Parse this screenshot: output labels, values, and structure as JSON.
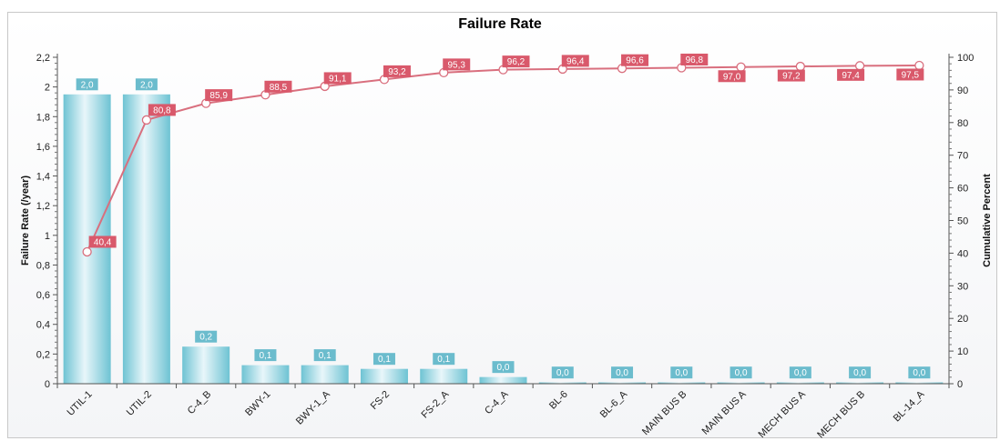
{
  "chart_data": {
    "type": "bar",
    "title": "Failure Rate",
    "categories": [
      "UTIL-1",
      "UTIL-2",
      "C-4_B",
      "BWY-1",
      "BWY-1_A",
      "FS-2",
      "FS-2_A",
      "C-4_A",
      "BL-6",
      "BL-6_A",
      "MAIN BUS B",
      "MAIN BUS A",
      "MECH BUS A",
      "MECH BUS B",
      "BL-14_A"
    ],
    "series": [
      {
        "type": "bar",
        "values": [
          1.95,
          1.95,
          0.25,
          0.125,
          0.125,
          0.1,
          0.1,
          0.045,
          0.008,
          0.008,
          0.008,
          0.008,
          0.008,
          0.008,
          0.008
        ],
        "data_labels": [
          "2,0",
          "2,0",
          "0,2",
          "0,1",
          "0,1",
          "0,1",
          "0,1",
          "0,0",
          "0,0",
          "0,0",
          "0,0",
          "0,0",
          "0,0",
          "0,0",
          "0,0"
        ],
        "axis": "left"
      },
      {
        "type": "line",
        "values": [
          40.4,
          80.8,
          85.9,
          88.5,
          91.1,
          93.2,
          95.3,
          96.2,
          96.4,
          96.6,
          96.8,
          97.0,
          97.2,
          97.4,
          97.5
        ],
        "data_labels": [
          "40,4",
          "80,8",
          "85,9",
          "88,5",
          "91,1",
          "93,2",
          "95,3",
          "96,2",
          "96,4",
          "96,6",
          "96,8",
          "97,0",
          "97,2",
          "97,4",
          "97,5"
        ],
        "axis": "right"
      }
    ],
    "ylabel": "Failure Rate (/year)",
    "y2label": "Cumulative Percent",
    "ylim": [
      0,
      2.2
    ],
    "y2lim": [
      0,
      100
    ],
    "yticks": [
      "0",
      "0,2",
      "0,4",
      "0,6",
      "0,8",
      "1",
      "1,2",
      "1,4",
      "1,6",
      "1,8",
      "2",
      "2,2"
    ],
    "y2ticks": [
      "0",
      "10",
      "20",
      "30",
      "40",
      "50",
      "60",
      "70",
      "80",
      "90",
      "100"
    ],
    "grid": false,
    "legend": "none",
    "colors": {
      "bar_light": "#e8f6fa",
      "bar_dark": "#6ec3d3",
      "bar_label_bg": "#6bbccd",
      "line": "#d96f7e",
      "line_label_bg": "#d9596b",
      "marker_fill": "#ffffff"
    }
  }
}
